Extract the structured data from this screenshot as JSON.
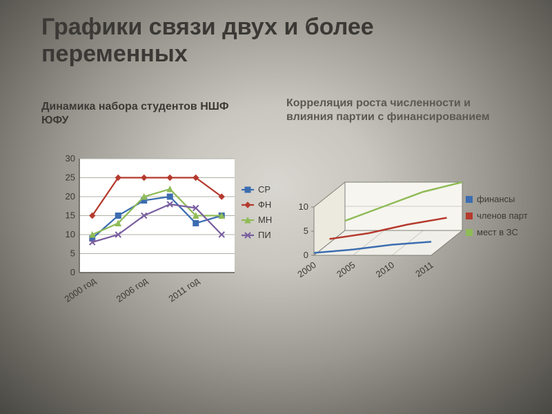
{
  "title": "Графики связи двух и более переменных",
  "left_sub": "Динамика набора студентов НШФ ЮФУ",
  "right_sub": "Корреляция роста численности и влияния партии с финансированием",
  "title_fontsize": 34,
  "sub_fontsize": 16,
  "text_color": "#3a3935",
  "chart_left": {
    "type": "line",
    "plot_bg": "#ffffff",
    "grid_color": "#b0b0a8",
    "axis_color": "#5a5952",
    "tick_fontsize": 13,
    "tick_color": "#3a3935",
    "y_min": 0,
    "y_max": 30,
    "y_step": 5,
    "x_labels": [
      "2000 год",
      "2006 год",
      "2011 год"
    ],
    "x_label_rotate": -35,
    "line_width": 2.3,
    "marker_size": 4,
    "x_points": 6,
    "series": [
      {
        "name": "СР",
        "color": "#3c6db0",
        "marker": "square",
        "values": [
          9,
          15,
          19,
          20,
          13,
          15
        ]
      },
      {
        "name": "ФН",
        "color": "#b53a2e",
        "marker": "diamond",
        "values": [
          15,
          25,
          25,
          25,
          25,
          20
        ]
      },
      {
        "name": "МН",
        "color": "#8fbb57",
        "marker": "triangle",
        "values": [
          10,
          13,
          20,
          22,
          15,
          15
        ]
      },
      {
        "name": "ПИ",
        "color": "#7a5fa0",
        "marker": "x",
        "values": [
          8,
          10,
          15,
          18,
          17,
          10
        ]
      }
    ],
    "legend_items": [
      "СР",
      "ФН",
      "МН",
      "ПИ"
    ]
  },
  "chart_right": {
    "type": "line3d",
    "plot_bg": "#ffffff",
    "axis_color": "#808078",
    "tick_fontsize": 13,
    "tick_color": "#3a3935",
    "y_min": 0,
    "y_max": 10,
    "y_step": 5,
    "x_labels": [
      "2000",
      "2005",
      "2010",
      "2011"
    ],
    "x_label_rotate": -35,
    "line_width": 2.5,
    "series": [
      {
        "name": "финансы",
        "color": "#3c6db0",
        "values": [
          0.5,
          1.2,
          2.2,
          2.8
        ],
        "z": 0
      },
      {
        "name": "членов партии",
        "color": "#b53a2e",
        "values": [
          0.8,
          2.0,
          3.8,
          5.2
        ],
        "z": 1
      },
      {
        "name": "мест в ЗС",
        "color": "#8fbb57",
        "values": [
          2.0,
          5.0,
          8.0,
          10.0
        ],
        "z": 2
      }
    ],
    "legend_items": [
      "финансы",
      "членов партии",
      "мест в ЗС"
    ]
  }
}
